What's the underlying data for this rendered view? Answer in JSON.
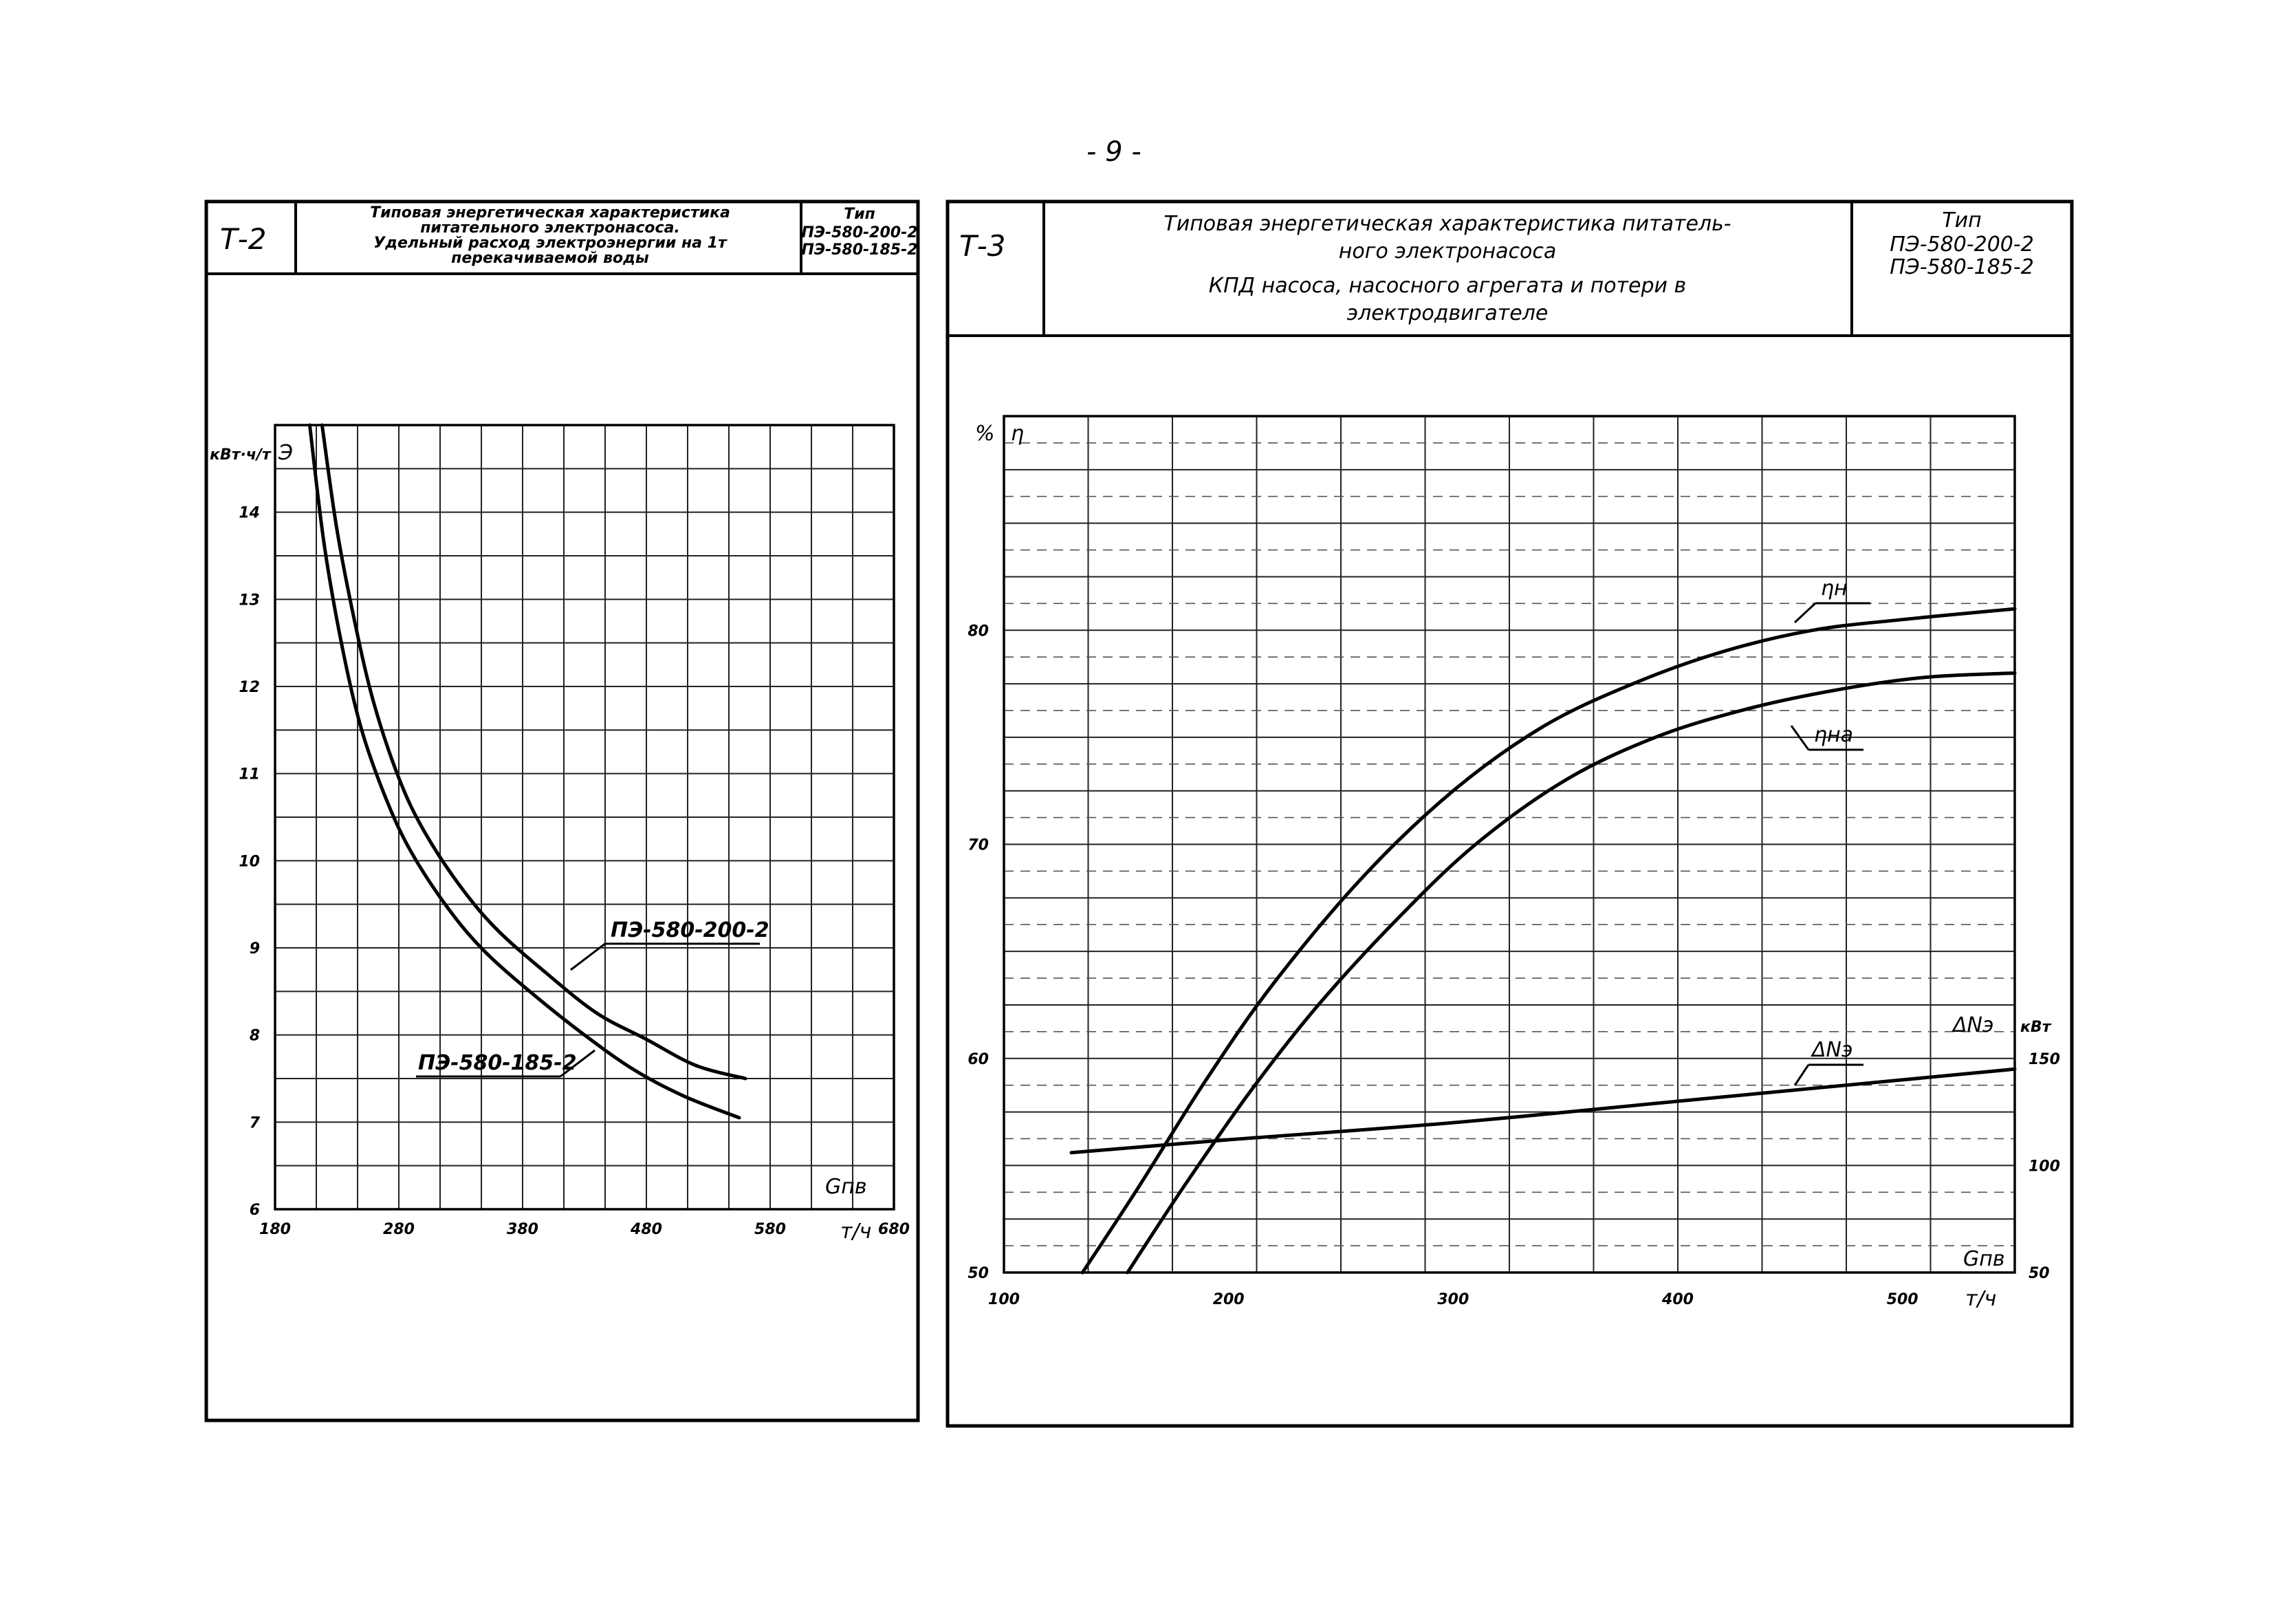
{
  "page_number": "- 9 -",
  "panels": [
    {
      "code": "Т-2",
      "title_lines": [
        "Типовая энергетическая характеристика",
        "питательного электронасоса.",
        "Удельный расход электроэнергии на 1т",
        "перекачиваемой воды"
      ],
      "type_label": "Тип",
      "type_models": [
        "ПЭ-580-200-2",
        "ПЭ-580-185-2"
      ]
    },
    {
      "code": "Т-3",
      "title_lines": [
        "Типовая энергетическая характеристика питатель-",
        "ного электронасоса",
        "КПД насоса, насосного агрегата и потери в",
        "электродвигателе"
      ],
      "type_label": "Тип",
      "type_models": [
        "ПЭ-580-200-2",
        "ПЭ-580-185-2"
      ]
    }
  ],
  "chart_data": [
    {
      "type": "line",
      "y_unit": "кВт·ч/т",
      "y_symbol": "Э",
      "x_symbol": "Gпв",
      "x_unit": "т/ч",
      "xlim": [
        180,
        680
      ],
      "ylim": [
        6,
        15
      ],
      "x_ticks": [
        "180",
        "280",
        "380",
        "480",
        "580",
        "680"
      ],
      "y_ticks": [
        "6",
        "7",
        "8",
        "9",
        "10",
        "11",
        "12",
        "13",
        "14"
      ],
      "grid": true,
      "series": [
        {
          "name": "ПЭ-580-200-2",
          "x": [
            218,
            230,
            245,
            260,
            280,
            300,
            330,
            360,
            400,
            440,
            480,
            520,
            560
          ],
          "y": [
            15,
            13.8,
            12.7,
            11.8,
            10.95,
            10.35,
            9.7,
            9.2,
            8.7,
            8.25,
            7.95,
            7.65,
            7.5
          ]
        },
        {
          "name": "ПЭ-580-185-2",
          "x": [
            208,
            220,
            235,
            250,
            270,
            290,
            320,
            350,
            390,
            430,
            470,
            510,
            555
          ],
          "y": [
            15,
            13.6,
            12.4,
            11.5,
            10.7,
            10.1,
            9.45,
            8.95,
            8.45,
            8.0,
            7.6,
            7.3,
            7.05
          ]
        }
      ]
    },
    {
      "type": "line",
      "y_unit": "%",
      "y_symbol": "η",
      "x_symbol": "Gпв",
      "x_unit": "т/ч",
      "xlim": [
        100,
        550
      ],
      "ylim": [
        50,
        90
      ],
      "x_ticks": [
        "100",
        "200",
        "300",
        "400",
        "500"
      ],
      "y_ticks": [
        "50",
        "60",
        "70",
        "80"
      ],
      "y2_symbol": "ΔNэ",
      "y2_unit": "кВт",
      "y2lim": [
        50,
        150
      ],
      "y2_ticks": [
        "50",
        "100",
        "150"
      ],
      "grid": true,
      "series": [
        {
          "name": "ηн",
          "axis": "left",
          "x": [
            135,
            160,
            190,
            220,
            260,
            300,
            340,
            380,
            420,
            460,
            500,
            550
          ],
          "y": [
            50,
            54,
            59,
            63.5,
            68.5,
            72.5,
            75.5,
            77.5,
            79,
            80,
            80.5,
            81
          ]
        },
        {
          "name": "ηна",
          "axis": "left",
          "x": [
            155,
            180,
            210,
            240,
            275,
            310,
            350,
            390,
            430,
            470,
            510,
            550
          ],
          "y": [
            50,
            54,
            58.5,
            62.5,
            66.5,
            70,
            73,
            75,
            76.3,
            77.2,
            77.8,
            78
          ]
        },
        {
          "name": "ΔNэ",
          "axis": "right",
          "x": [
            130,
            200,
            300,
            400,
            500,
            550
          ],
          "y": [
            106,
            112,
            120,
            130,
            140,
            145
          ]
        }
      ]
    }
  ],
  "annotations": {
    "t2_model_a": "ПЭ-580-200-2",
    "t2_model_b": "ПЭ-580-185-2",
    "t3_eta_n": "ηн",
    "t3_eta_na": "ηна",
    "t3_dn": "ΔNэ",
    "t3_dn_axis": "ΔNэ",
    "t3_dn_unit": "кВт",
    "t2_y_unit": "кВт·ч/т",
    "t2_y_symbol": "Э",
    "t2_x_symbol": "Gпв",
    "t2_x_unit": "т/ч",
    "t3_y_unit": "%",
    "t3_y_symbol": "η",
    "t3_x_symbol": "Gпв",
    "t3_x_unit": "т/ч"
  },
  "colors": {
    "ink": "#000000",
    "paper": "#ffffff"
  }
}
